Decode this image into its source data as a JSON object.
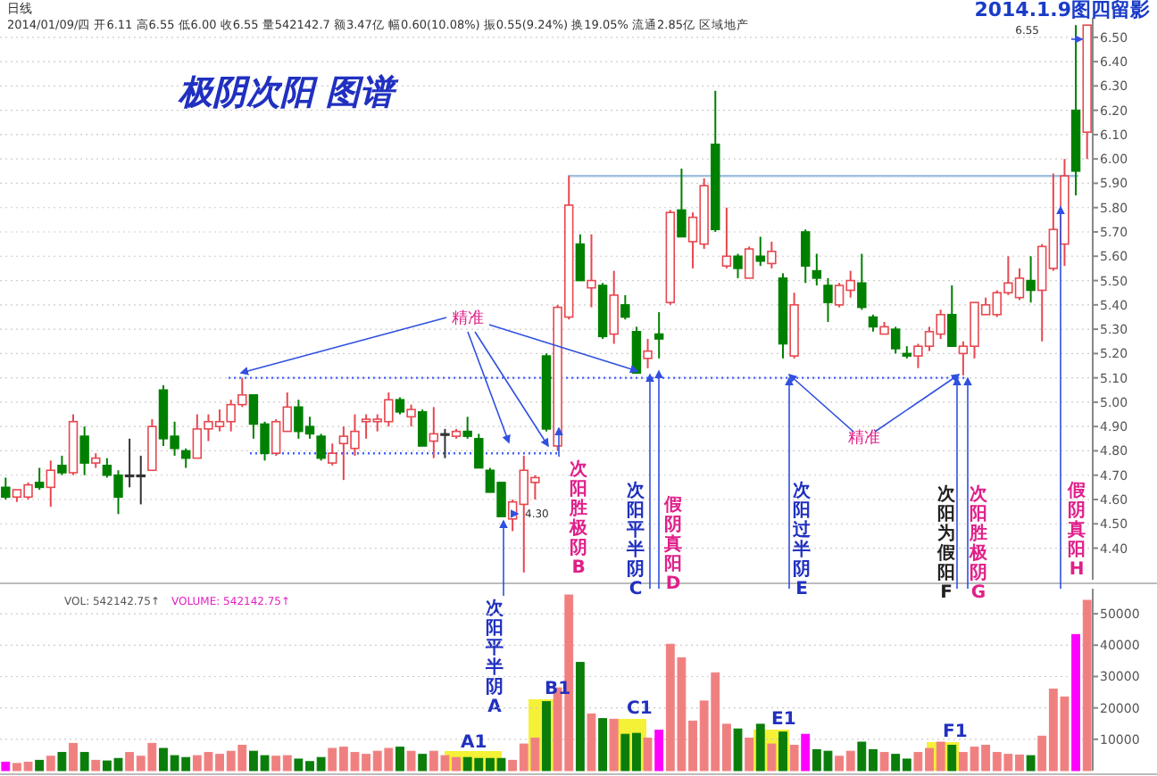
{
  "chart_data": [
    {
      "type": "candlestick",
      "title": "极阴次阳 图谱",
      "categories": [
        null,
        null,
        null,
        null,
        null,
        null,
        null,
        null,
        null,
        null,
        null,
        null,
        null,
        null,
        null,
        null,
        null,
        null,
        null,
        null,
        null,
        null,
        null,
        null,
        null,
        null,
        null,
        null,
        null,
        null,
        null,
        null,
        null,
        null,
        null,
        null,
        null,
        null,
        null,
        null,
        null,
        null,
        null,
        null,
        null,
        null,
        null,
        null,
        null,
        null,
        null,
        null,
        null,
        null,
        null,
        null,
        null,
        null,
        null,
        null,
        null,
        null,
        null,
        null,
        null,
        null,
        null,
        null,
        null,
        null,
        null,
        null,
        null,
        null,
        null,
        null,
        null,
        null,
        null,
        null,
        null,
        null,
        null,
        null,
        null,
        null,
        null,
        null,
        null,
        null,
        null,
        null,
        null,
        null,
        null,
        null,
        null
      ],
      "ohlc": [
        [
          4.65,
          4.69,
          4.6,
          4.61
        ],
        [
          4.61,
          4.64,
          4.59,
          4.64
        ],
        [
          4.61,
          4.67,
          4.6,
          4.66
        ],
        [
          4.67,
          4.73,
          4.64,
          4.65
        ],
        [
          4.65,
          4.76,
          4.57,
          4.72
        ],
        [
          4.74,
          4.78,
          4.7,
          4.71
        ],
        [
          4.71,
          4.95,
          4.7,
          4.92
        ],
        [
          4.86,
          4.9,
          4.7,
          4.75
        ],
        [
          4.75,
          4.79,
          4.73,
          4.77
        ],
        [
          4.74,
          4.77,
          4.69,
          4.7
        ],
        [
          4.7,
          4.72,
          4.54,
          4.61
        ],
        [
          4.7,
          4.85,
          4.65,
          4.7
        ],
        [
          4.7,
          4.78,
          4.58,
          4.7
        ],
        [
          4.72,
          4.93,
          4.72,
          4.9
        ],
        [
          5.05,
          5.07,
          4.82,
          4.85
        ],
        [
          4.86,
          4.92,
          4.78,
          4.81
        ],
        [
          4.8,
          4.81,
          4.73,
          4.77
        ],
        [
          4.77,
          4.95,
          4.77,
          4.89
        ],
        [
          4.89,
          4.95,
          4.84,
          4.92
        ],
        [
          4.9,
          4.97,
          4.88,
          4.92
        ],
        [
          4.92,
          5.01,
          4.88,
          4.99
        ],
        [
          4.99,
          5.1,
          4.98,
          5.03
        ],
        [
          5.03,
          5.03,
          4.85,
          4.91
        ],
        [
          4.91,
          4.92,
          4.76,
          4.79
        ],
        [
          4.79,
          4.93,
          4.78,
          4.92
        ],
        [
          4.88,
          5.04,
          4.88,
          4.98
        ],
        [
          4.98,
          5.01,
          4.85,
          4.88
        ],
        [
          4.9,
          4.94,
          4.85,
          4.87
        ],
        [
          4.86,
          4.87,
          4.76,
          4.77
        ],
        [
          4.75,
          4.83,
          4.74,
          4.79
        ],
        [
          4.83,
          4.9,
          4.68,
          4.86
        ],
        [
          4.81,
          4.95,
          4.78,
          4.88
        ],
        [
          4.92,
          4.95,
          4.85,
          4.93
        ],
        [
          4.92,
          4.95,
          4.88,
          4.93
        ],
        [
          4.92,
          5.04,
          4.9,
          5.01
        ],
        [
          5.01,
          5.02,
          4.95,
          4.96
        ],
        [
          4.94,
          4.99,
          4.9,
          4.97
        ],
        [
          4.96,
          4.97,
          4.82,
          4.82
        ],
        [
          4.84,
          4.98,
          4.77,
          4.87
        ],
        [
          4.87,
          4.89,
          4.77,
          4.87
        ],
        [
          4.86,
          4.89,
          4.85,
          4.88
        ],
        [
          4.88,
          4.94,
          4.85,
          4.86
        ],
        [
          4.85,
          4.87,
          4.73,
          4.73
        ],
        [
          4.72,
          4.73,
          4.63,
          4.63
        ],
        [
          4.67,
          4.67,
          4.53,
          4.53
        ],
        [
          4.52,
          4.6,
          4.47,
          4.59
        ],
        [
          4.58,
          4.78,
          4.3,
          4.72
        ],
        [
          4.67,
          4.7,
          4.6,
          4.69
        ],
        [
          5.19,
          5.2,
          4.88,
          4.89
        ],
        [
          4.82,
          5.4,
          4.8,
          5.39
        ],
        [
          5.35,
          5.93,
          5.34,
          5.81
        ],
        [
          5.65,
          5.69,
          5.5,
          5.5
        ],
        [
          5.47,
          5.69,
          5.39,
          5.5
        ],
        [
          5.48,
          5.49,
          5.26,
          5.27
        ],
        [
          5.28,
          5.54,
          5.24,
          5.44
        ],
        [
          5.4,
          5.44,
          5.34,
          5.35
        ],
        [
          5.29,
          5.31,
          5.12,
          5.12
        ],
        [
          5.18,
          5.26,
          5.14,
          5.21
        ],
        [
          5.28,
          5.37,
          5.18,
          5.26
        ],
        [
          5.41,
          5.79,
          5.4,
          5.78
        ],
        [
          5.79,
          5.96,
          5.68,
          5.68
        ],
        [
          5.66,
          5.78,
          5.55,
          5.76
        ],
        [
          5.65,
          5.92,
          5.63,
          5.89
        ],
        [
          6.06,
          6.28,
          5.7,
          5.71
        ],
        [
          5.56,
          5.8,
          5.55,
          5.6
        ],
        [
          5.6,
          5.61,
          5.51,
          5.55
        ],
        [
          5.51,
          5.64,
          5.51,
          5.63
        ],
        [
          5.6,
          5.68,
          5.56,
          5.58
        ],
        [
          5.57,
          5.66,
          5.55,
          5.62
        ],
        [
          5.51,
          5.53,
          5.18,
          5.24
        ],
        [
          5.19,
          5.45,
          5.18,
          5.4
        ],
        [
          5.7,
          5.71,
          5.49,
          5.56
        ],
        [
          5.54,
          5.61,
          5.48,
          5.51
        ],
        [
          5.48,
          5.51,
          5.33,
          5.41
        ],
        [
          5.4,
          5.49,
          5.39,
          5.48
        ],
        [
          5.46,
          5.54,
          5.43,
          5.5
        ],
        [
          5.49,
          5.61,
          5.38,
          5.39
        ],
        [
          5.35,
          5.36,
          5.29,
          5.31
        ],
        [
          5.28,
          5.33,
          5.28,
          5.31
        ],
        [
          5.3,
          5.31,
          5.2,
          5.22
        ],
        [
          5.2,
          5.23,
          5.18,
          5.19
        ],
        [
          5.19,
          5.24,
          5.14,
          5.23
        ],
        [
          5.23,
          5.31,
          5.21,
          5.29
        ],
        [
          5.28,
          5.38,
          5.26,
          5.36
        ],
        [
          5.36,
          5.48,
          5.23,
          5.23
        ],
        [
          5.2,
          5.25,
          5.11,
          5.23
        ],
        [
          5.23,
          5.41,
          5.18,
          5.41
        ],
        [
          5.36,
          5.43,
          5.36,
          5.4
        ],
        [
          5.36,
          5.46,
          5.35,
          5.45
        ],
        [
          5.45,
          5.6,
          5.44,
          5.49
        ],
        [
          5.43,
          5.55,
          5.42,
          5.51
        ],
        [
          5.5,
          5.6,
          5.41,
          5.46
        ],
        [
          5.46,
          5.65,
          5.25,
          5.64
        ],
        [
          5.55,
          5.94,
          5.54,
          5.71
        ],
        [
          5.65,
          6.0,
          5.56,
          5.93
        ],
        [
          6.2,
          6.55,
          5.85,
          5.95
        ],
        [
          6.11,
          6.55,
          6.0,
          6.55
        ]
      ],
      "ylim": [
        4.27,
        6.58
      ],
      "yticks": [
        {
          "value": 4.4,
          "label": "4.40"
        },
        {
          "value": 4.5,
          "label": "4.50"
        },
        {
          "value": 4.6,
          "label": "4.60"
        },
        {
          "value": 4.7,
          "label": "4.70"
        },
        {
          "value": 4.8,
          "label": "4.80"
        },
        {
          "value": 4.9,
          "label": "4.90"
        },
        {
          "value": 5.0,
          "label": "5.00"
        },
        {
          "value": 5.1,
          "label": "5.10"
        },
        {
          "value": 5.2,
          "label": "5.20"
        },
        {
          "value": 5.3,
          "label": "5.30"
        },
        {
          "value": 5.4,
          "label": "5.40"
        },
        {
          "value": 5.5,
          "label": "5.50"
        },
        {
          "value": 5.6,
          "label": "5.60"
        },
        {
          "value": 5.7,
          "label": "5.70"
        },
        {
          "value": 5.8,
          "label": "5.80"
        },
        {
          "value": 5.9,
          "label": "5.90"
        },
        {
          "value": 6.0,
          "label": "6.00"
        },
        {
          "value": 6.1,
          "label": "6.10"
        },
        {
          "value": 6.2,
          "label": "6.20"
        },
        {
          "value": 6.3,
          "label": "6.30"
        },
        {
          "value": 6.4,
          "label": "6.40"
        },
        {
          "value": 6.5,
          "label": "6.50"
        }
      ],
      "grid": "y",
      "ref_lines": [
        {
          "axis": "y",
          "value": 5.1,
          "color": "#4060ff",
          "line_style": "dotted"
        },
        {
          "axis": "y",
          "value": 4.79,
          "color": "#4060ff",
          "line_style": "dotted"
        },
        {
          "axis": "y",
          "value": 5.93,
          "color": "#a0c0e0",
          "line_style": "solid"
        }
      ],
      "annotations": [
        "日线",
        "2014/01/09/四 开6.11 高6.55 低6.00 收6.55 量542142.7 额3.47亿 幅0.60(10.08%) 振0.55(9.24%) 换19.05% 流通2.85亿 区域地产",
        "2014.1.9图四留影",
        "精准",
        "精准",
        "6.55",
        "4.30",
        "次阳平半阴A",
        "次阳胜极阴B",
        "次阳平半阴C",
        "假阴真阳D",
        "次阳过半阴E",
        "次阳为假阳F",
        "次阳胜极阴G",
        "假阴真阳H"
      ]
    },
    {
      "type": "bar",
      "categories": [
        null,
        null,
        null,
        null,
        null,
        null,
        null,
        null,
        null,
        null,
        null,
        null,
        null,
        null,
        null,
        null,
        null,
        null,
        null,
        null,
        null,
        null,
        null,
        null,
        null,
        null,
        null,
        null,
        null,
        null,
        null,
        null,
        null,
        null,
        null,
        null,
        null,
        null,
        null,
        null,
        null,
        null,
        null,
        null,
        null,
        null,
        null,
        null,
        null,
        null,
        null,
        null,
        null,
        null,
        null,
        null,
        null,
        null,
        null,
        null,
        null,
        null,
        null,
        null,
        null,
        null,
        null,
        null,
        null,
        null,
        null,
        null,
        null,
        null,
        null,
        null,
        null,
        null,
        null,
        null,
        null,
        null,
        null,
        null,
        null,
        null,
        null,
        null,
        null,
        null,
        null,
        null,
        null,
        null,
        null,
        null,
        null
      ],
      "values": [
        2700,
        2300,
        2700,
        3300,
        4600,
        5800,
        8700,
        5800,
        3300,
        3100,
        3900,
        5800,
        4600,
        8700,
        7100,
        4800,
        4200,
        4800,
        5800,
        5200,
        6200,
        8100,
        6200,
        4800,
        4600,
        4800,
        3700,
        2900,
        4200,
        7100,
        7500,
        5800,
        5200,
        6200,
        7100,
        7500,
        6200,
        5200,
        6200,
        4800,
        4200,
        4200,
        3900,
        3900,
        3900,
        3300,
        8500,
        10400,
        22000,
        26400,
        56000,
        34500,
        18100,
        16600,
        16400,
        11600,
        11900,
        10400,
        12900,
        40300,
        36000,
        15800,
        22200,
        31200,
        14800,
        13300,
        10400,
        14800,
        8500,
        12300,
        8100,
        11600,
        6700,
        6200,
        4600,
        6200,
        9100,
        6700,
        5800,
        5200,
        3700,
        5800,
        7100,
        9100,
        8100,
        5800,
        7500,
        8100,
        5800,
        5200,
        5000,
        4800,
        11000,
        26000,
        23500,
        43400,
        54300
      ],
      "colors": [
        "#ff00ff",
        "#f08080",
        "#f08080",
        "#0a7d0a",
        "#f08080",
        "#0a7d0a",
        "#f08080",
        "#0a7d0a",
        "#f08080",
        "#0a7d0a",
        "#0a7d0a",
        "#f08080",
        "#f08080",
        "#f08080",
        "#0a7d0a",
        "#0a7d0a",
        "#0a7d0a",
        "#f08080",
        "#f08080",
        "#f08080",
        "#f08080",
        "#f08080",
        "#0a7d0a",
        "#0a7d0a",
        "#f08080",
        "#f08080",
        "#0a7d0a",
        "#0a7d0a",
        "#0a7d0a",
        "#f08080",
        "#f08080",
        "#f08080",
        "#f08080",
        "#f08080",
        "#f08080",
        "#0a7d0a",
        "#f08080",
        "#0a7d0a",
        "#f08080",
        "#f08080",
        "#f08080",
        "#0a7d0a",
        "#0a7d0a",
        "#0a7d0a",
        "#0a7d0a",
        "#f08080",
        "#f08080",
        "#f08080",
        "#0a7d0a",
        "#f08080",
        "#f08080",
        "#0a7d0a",
        "#f08080",
        "#0a7d0a",
        "#f08080",
        "#0a7d0a",
        "#0a7d0a",
        "#f08080",
        "#ff00ff",
        "#f08080",
        "#f08080",
        "#f08080",
        "#f08080",
        "#f08080",
        "#f08080",
        "#0a7d0a",
        "#f08080",
        "#0a7d0a",
        "#f08080",
        "#0a7d0a",
        "#f08080",
        "#ff00ff",
        "#0a7d0a",
        "#0a7d0a",
        "#f08080",
        "#f08080",
        "#0a7d0a",
        "#0a7d0a",
        "#f08080",
        "#0a7d0a",
        "#0a7d0a",
        "#f08080",
        "#f08080",
        "#f08080",
        "#0a7d0a",
        "#f08080",
        "#f08080",
        "#f08080",
        "#f08080",
        "#f08080",
        "#f08080",
        "#0a7d0a",
        "#f08080",
        "#f08080",
        "#f08080",
        "#ff00ff",
        "#f08080"
      ],
      "ylim": [
        0,
        58000
      ],
      "yticks": [
        10000,
        20000,
        30000,
        40000,
        50000
      ],
      "grid": "y",
      "annotations": [
        "VOL: 542142.75↑",
        "VOLUME: 542142.75↑",
        "A1",
        "B1",
        "C1",
        "E1",
        "F1"
      ]
    }
  ]
}
